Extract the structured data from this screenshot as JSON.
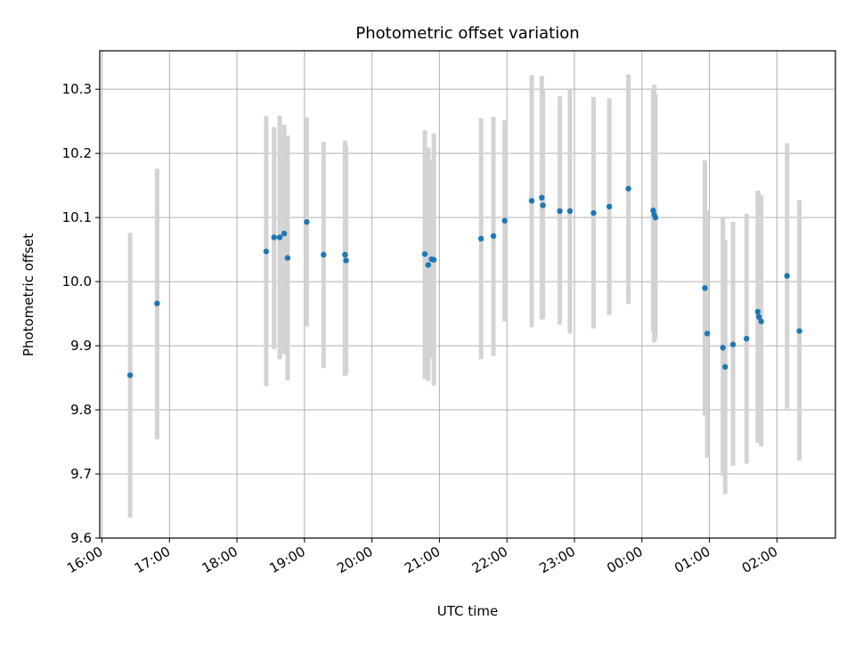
{
  "chart_data": {
    "type": "scatter",
    "title": "Photometric offset variation",
    "xlabel": "UTC time",
    "ylabel": "Photometric offset",
    "ylim": [
      9.6,
      10.36
    ],
    "yticks": [
      "9.6",
      "9.7",
      "9.8",
      "9.9",
      "10.0",
      "10.1",
      "10.2",
      "10.3"
    ],
    "xlim": [
      "15:58",
      "02:52"
    ],
    "xticks": [
      "16:00",
      "17:00",
      "18:00",
      "19:00",
      "20:00",
      "21:00",
      "22:00",
      "23:00",
      "00:00",
      "01:00",
      "02:00"
    ],
    "grid": true,
    "colors": {
      "marker": "#1f77b4",
      "errorbar": "#d3d3d3",
      "grid": "#b0b0b0"
    },
    "points": [
      {
        "x": "16:25",
        "y": 9.854,
        "lo": 9.632,
        "hi": 10.076
      },
      {
        "x": "16:49",
        "y": 9.966,
        "lo": 9.754,
        "hi": 10.176
      },
      {
        "x": "18:26",
        "y": 10.047,
        "lo": 9.837,
        "hi": 10.258
      },
      {
        "x": "18:33",
        "y": 10.069,
        "lo": 9.895,
        "hi": 10.241
      },
      {
        "x": "18:38",
        "y": 10.069,
        "lo": 9.879,
        "hi": 10.259
      },
      {
        "x": "18:42",
        "y": 10.075,
        "lo": 9.887,
        "hi": 10.245
      },
      {
        "x": "18:45",
        "y": 10.037,
        "lo": 9.846,
        "hi": 10.228
      },
      {
        "x": "19:02",
        "y": 10.093,
        "lo": 9.93,
        "hi": 10.256
      },
      {
        "x": "19:17",
        "y": 10.042,
        "lo": 9.865,
        "hi": 10.218
      },
      {
        "x": "19:36",
        "y": 10.042,
        "lo": 9.853,
        "hi": 10.22
      },
      {
        "x": "19:37",
        "y": 10.033,
        "lo": 9.855,
        "hi": 10.212
      },
      {
        "x": "20:47",
        "y": 10.043,
        "lo": 9.848,
        "hi": 10.236
      },
      {
        "x": "20:50",
        "y": 10.026,
        "lo": 9.845,
        "hi": 10.209
      },
      {
        "x": "20:53",
        "y": 10.035,
        "lo": 9.88,
        "hi": 10.19
      },
      {
        "x": "20:55",
        "y": 10.034,
        "lo": 9.838,
        "hi": 10.231
      },
      {
        "x": "21:37",
        "y": 10.067,
        "lo": 9.879,
        "hi": 10.255
      },
      {
        "x": "21:48",
        "y": 10.071,
        "lo": 9.884,
        "hi": 10.257
      },
      {
        "x": "21:58",
        "y": 10.095,
        "lo": 9.938,
        "hi": 10.252
      },
      {
        "x": "22:22",
        "y": 10.126,
        "lo": 9.929,
        "hi": 10.322
      },
      {
        "x": "22:31",
        "y": 10.131,
        "lo": 9.941,
        "hi": 10.321
      },
      {
        "x": "22:32",
        "y": 10.119,
        "lo": 9.942,
        "hi": 10.3
      },
      {
        "x": "22:47",
        "y": 10.11,
        "lo": 9.933,
        "hi": 10.289
      },
      {
        "x": "22:56",
        "y": 10.11,
        "lo": 9.919,
        "hi": 10.3
      },
      {
        "x": "23:17",
        "y": 10.107,
        "lo": 9.927,
        "hi": 10.288
      },
      {
        "x": "23:31",
        "y": 10.117,
        "lo": 9.948,
        "hi": 10.286
      },
      {
        "x": "23:48",
        "y": 10.145,
        "lo": 9.965,
        "hi": 10.323
      },
      {
        "x": "00:10",
        "y": 10.111,
        "lo": 9.922,
        "hi": 10.301
      },
      {
        "x": "00:11",
        "y": 10.104,
        "lo": 9.905,
        "hi": 10.307
      },
      {
        "x": "00:12",
        "y": 10.1,
        "lo": 9.911,
        "hi": 10.293
      },
      {
        "x": "00:56",
        "y": 9.99,
        "lo": 9.791,
        "hi": 10.189
      },
      {
        "x": "00:58",
        "y": 9.919,
        "lo": 9.725,
        "hi": 10.111
      },
      {
        "x": "01:12",
        "y": 9.897,
        "lo": 9.697,
        "hi": 10.099
      },
      {
        "x": "01:14",
        "y": 9.867,
        "lo": 9.669,
        "hi": 10.065
      },
      {
        "x": "01:21",
        "y": 9.902,
        "lo": 9.713,
        "hi": 10.093
      },
      {
        "x": "01:33",
        "y": 9.911,
        "lo": 9.716,
        "hi": 10.106
      },
      {
        "x": "01:43",
        "y": 9.953,
        "lo": 9.749,
        "hi": 10.142
      },
      {
        "x": "01:44",
        "y": 9.945,
        "lo": 9.748,
        "hi": 10.138
      },
      {
        "x": "01:46",
        "y": 9.938,
        "lo": 9.743,
        "hi": 10.134
      },
      {
        "x": "02:09",
        "y": 10.009,
        "lo": 9.802,
        "hi": 10.216
      },
      {
        "x": "02:20",
        "y": 9.923,
        "lo": 9.721,
        "hi": 10.127
      }
    ]
  }
}
